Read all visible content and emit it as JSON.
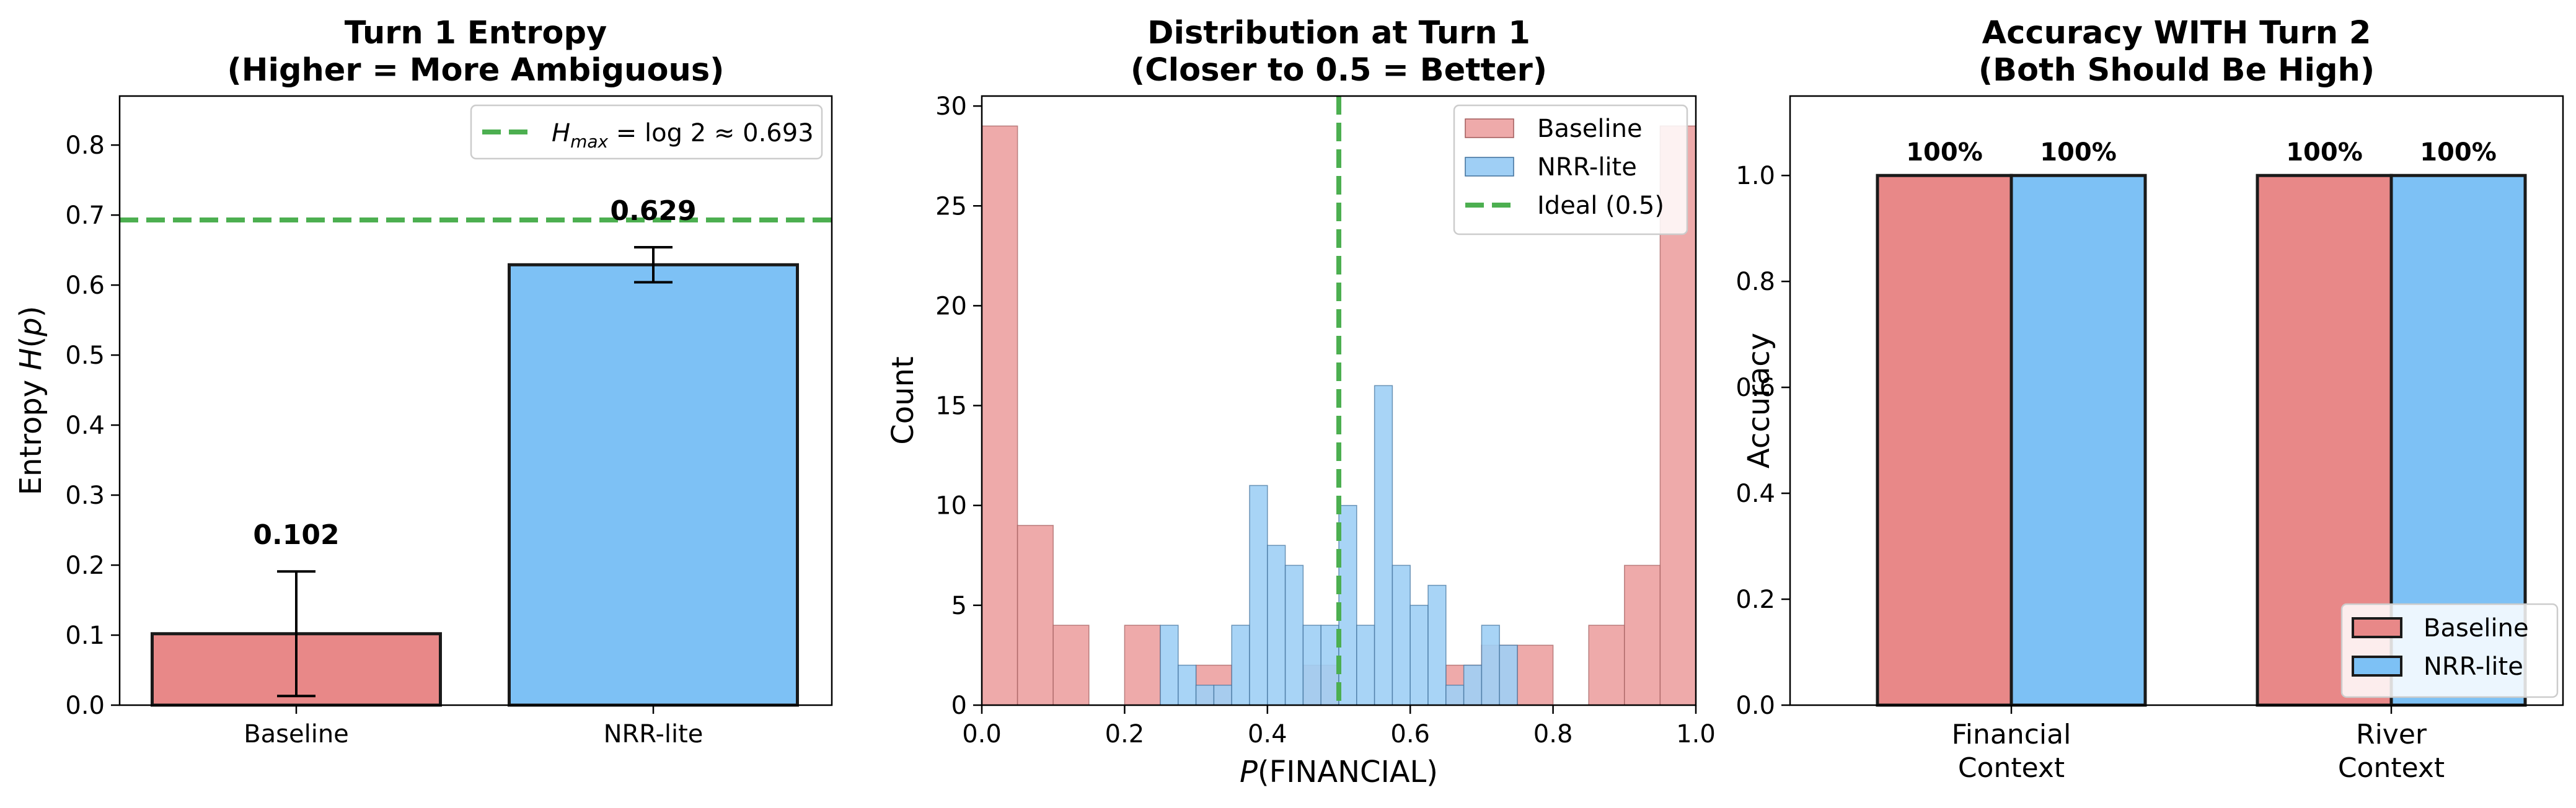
{
  "colors": {
    "baseline": "#e88888",
    "nrr": "#7dc1f5",
    "baseline_hist": "#eeaaaa",
    "nrr_hist": "#9fcff5",
    "ideal": "#4caf50",
    "edge": "#1a1a1a"
  },
  "chart_data": [
    {
      "type": "bar",
      "title": "Turn 1 Entropy\n(Higher = More Ambiguous)",
      "xlabel": "",
      "ylabel": "Entropy H(p)",
      "ylim": [
        0,
        0.87
      ],
      "yticks": [
        0.0,
        0.1,
        0.2,
        0.3,
        0.4,
        0.5,
        0.6,
        0.7,
        0.8
      ],
      "categories": [
        "Baseline",
        "NRR-lite"
      ],
      "values": [
        0.102,
        0.629
      ],
      "errors": [
        0.089,
        0.025
      ],
      "value_labels": [
        "0.102",
        "0.629"
      ],
      "reference_line": {
        "y": 0.693,
        "label": "H_max = log 2 ≈ 0.693"
      },
      "legend": {
        "location": "top-right",
        "entries": [
          "H_max = log 2 ≈ 0.693"
        ]
      }
    },
    {
      "type": "histogram",
      "title": "Distribution at Turn 1\n(Closer to 0.5 = Better)",
      "xlabel": "P(FINANCIAL)",
      "ylabel": "Count",
      "xlim": [
        0,
        1
      ],
      "ylim": [
        0,
        30.5
      ],
      "xticks": [
        0.0,
        0.2,
        0.4,
        0.6,
        0.8,
        1.0
      ],
      "yticks": [
        0,
        5,
        10,
        15,
        20,
        25,
        30
      ],
      "series": [
        {
          "name": "Baseline",
          "bins": [
            {
              "x0": 0.0,
              "x1": 0.05,
              "count": 29
            },
            {
              "x0": 0.05,
              "x1": 0.1,
              "count": 9
            },
            {
              "x0": 0.1,
              "x1": 0.15,
              "count": 4
            },
            {
              "x0": 0.2,
              "x1": 0.25,
              "count": 4
            },
            {
              "x0": 0.3,
              "x1": 0.35,
              "count": 2
            },
            {
              "x0": 0.45,
              "x1": 0.5,
              "count": 2
            },
            {
              "x0": 0.65,
              "x1": 0.7,
              "count": 2
            },
            {
              "x0": 0.7,
              "x1": 0.75,
              "count": 3
            },
            {
              "x0": 0.75,
              "x1": 0.8,
              "count": 3
            },
            {
              "x0": 0.85,
              "x1": 0.9,
              "count": 4
            },
            {
              "x0": 0.9,
              "x1": 0.95,
              "count": 7
            },
            {
              "x0": 0.95,
              "x1": 1.0,
              "count": 29
            }
          ]
        },
        {
          "name": "NRR-lite",
          "bins": [
            {
              "x0": 0.25,
              "x1": 0.275,
              "count": 4
            },
            {
              "x0": 0.275,
              "x1": 0.3,
              "count": 2
            },
            {
              "x0": 0.3,
              "x1": 0.325,
              "count": 1
            },
            {
              "x0": 0.325,
              "x1": 0.35,
              "count": 1
            },
            {
              "x0": 0.35,
              "x1": 0.375,
              "count": 4
            },
            {
              "x0": 0.375,
              "x1": 0.4,
              "count": 11
            },
            {
              "x0": 0.4,
              "x1": 0.425,
              "count": 8
            },
            {
              "x0": 0.425,
              "x1": 0.45,
              "count": 7
            },
            {
              "x0": 0.45,
              "x1": 0.475,
              "count": 4
            },
            {
              "x0": 0.475,
              "x1": 0.5,
              "count": 4
            },
            {
              "x0": 0.5,
              "x1": 0.525,
              "count": 10
            },
            {
              "x0": 0.525,
              "x1": 0.55,
              "count": 4
            },
            {
              "x0": 0.55,
              "x1": 0.575,
              "count": 16
            },
            {
              "x0": 0.575,
              "x1": 0.6,
              "count": 7
            },
            {
              "x0": 0.6,
              "x1": 0.625,
              "count": 5
            },
            {
              "x0": 0.625,
              "x1": 0.65,
              "count": 6
            },
            {
              "x0": 0.65,
              "x1": 0.675,
              "count": 1
            },
            {
              "x0": 0.675,
              "x1": 0.7,
              "count": 2
            },
            {
              "x0": 0.7,
              "x1": 0.725,
              "count": 4
            },
            {
              "x0": 0.725,
              "x1": 0.75,
              "count": 3
            }
          ]
        }
      ],
      "reference_line": {
        "x": 0.5,
        "label": "Ideal (0.5)"
      },
      "legend": {
        "location": "top-right",
        "entries": [
          "Baseline",
          "NRR-lite",
          "Ideal (0.5)"
        ]
      }
    },
    {
      "type": "bar",
      "title": "Accuracy WITH Turn 2\n(Both Should Be High)",
      "xlabel": "",
      "ylabel": "Accuracy",
      "ylim": [
        0,
        1.15
      ],
      "yticks": [
        0.0,
        0.2,
        0.4,
        0.6,
        0.8,
        1.0
      ],
      "categories": [
        "Financial\nContext",
        "River\nContext"
      ],
      "series": [
        {
          "name": "Baseline",
          "values": [
            1.0,
            1.0
          ],
          "value_labels": [
            "100%",
            "100%"
          ]
        },
        {
          "name": "NRR-lite",
          "values": [
            1.0,
            1.0
          ],
          "value_labels": [
            "100%",
            "100%"
          ]
        }
      ],
      "legend": {
        "location": "bottom-right",
        "entries": [
          "Baseline",
          "NRR-lite"
        ]
      }
    }
  ]
}
